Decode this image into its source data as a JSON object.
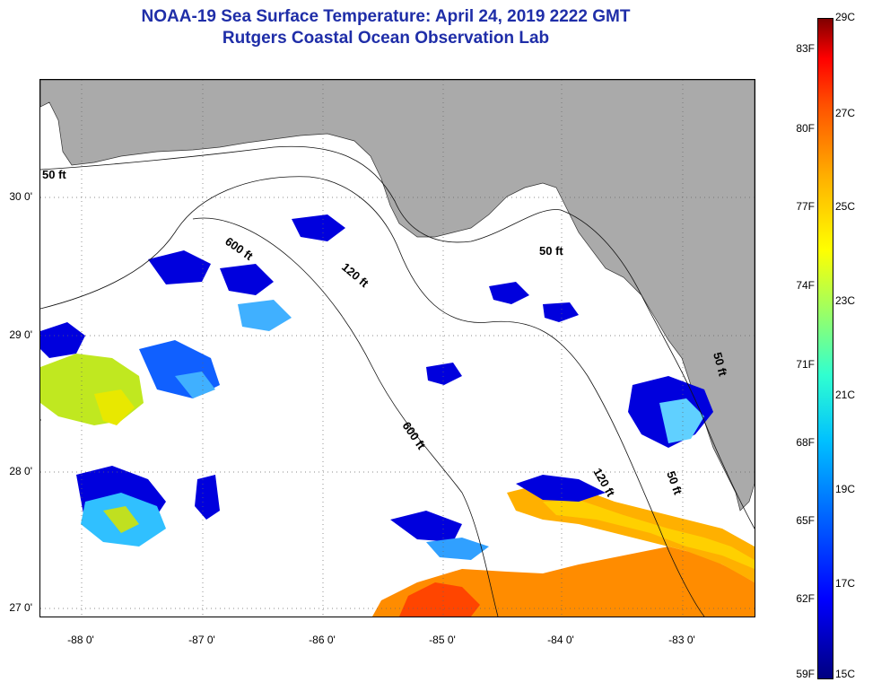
{
  "header": {
    "title_line1": "NOAA-19 Sea Surface Temperature:  April 24, 2019 2222 GMT",
    "title_line2": "Rutgers Coastal Ocean Observation Lab"
  },
  "map": {
    "latitude_labels": [
      "30 0'",
      "29 0'",
      "28 0'",
      "27 0'"
    ],
    "longitude_labels": [
      "-88 0'",
      "-87 0'",
      "-86 0'",
      "-85 0'",
      "-84 0'",
      "-83 0'"
    ],
    "contour_labels": [
      "50 ft",
      "600 ft",
      "120 ft",
      "50 ft",
      "600 ft",
      "120 ft",
      "50 ft",
      "50 ft"
    ],
    "land_color": "#aaaaaa",
    "ocean_color": "#ffffff"
  },
  "colorbar": {
    "fahrenheit_ticks": [
      "83F",
      "80F",
      "77F",
      "74F",
      "71F",
      "68F",
      "65F",
      "62F",
      "59F"
    ],
    "celsius_ticks": [
      "29C",
      "27C",
      "25C",
      "23C",
      "21C",
      "19C",
      "17C",
      "15C"
    ],
    "colors": [
      "#000080",
      "#0000ff",
      "#00c0ff",
      "#a0ff60",
      "#ffff00",
      "#ffb000",
      "#ff0000",
      "#800000"
    ]
  }
}
